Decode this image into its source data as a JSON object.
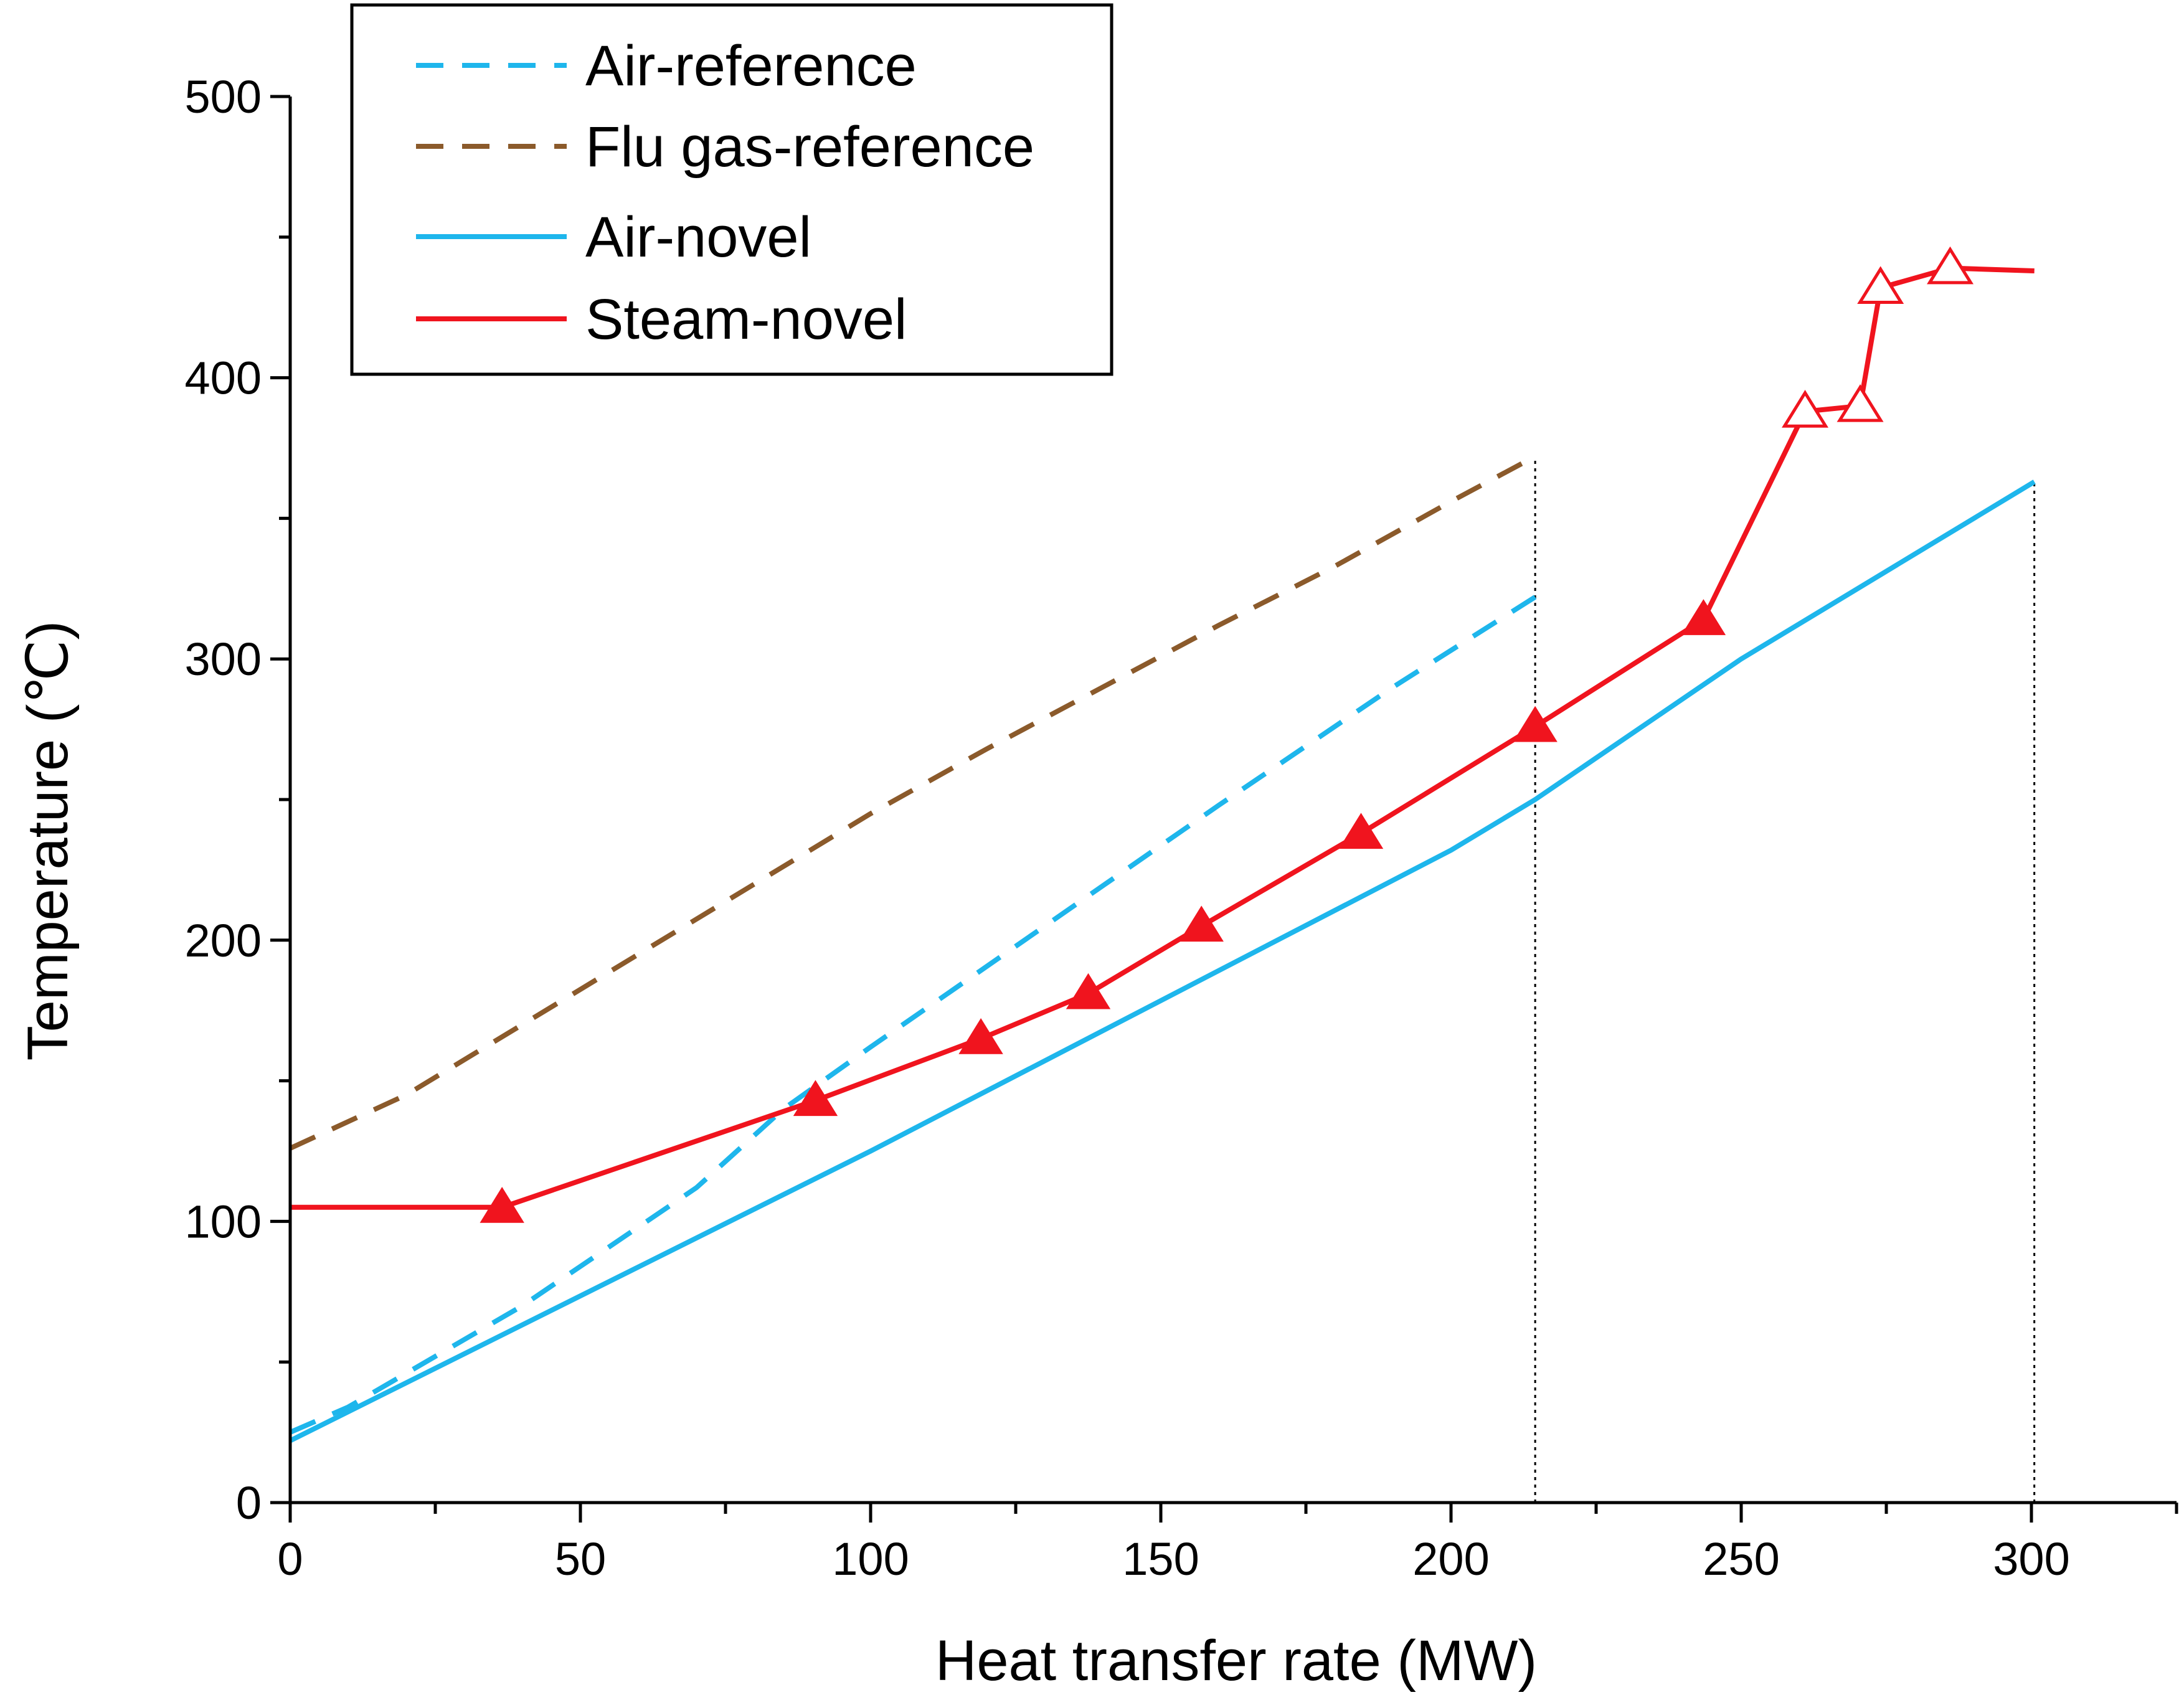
{
  "chart_data": {
    "type": "line",
    "title": "",
    "xlabel": "Heat transfer rate (MW)",
    "ylabel": "Temperature (℃)",
    "xlim": [
      0,
      325
    ],
    "ylim": [
      0,
      500
    ],
    "xticks": [
      0,
      50,
      100,
      150,
      200,
      250,
      300
    ],
    "yticks": [
      0,
      100,
      200,
      300,
      400,
      500
    ],
    "x_tick_labels": [
      "0",
      "50",
      "100",
      "150",
      "200",
      "250",
      "300"
    ],
    "y_tick_labels": [
      "0",
      "100",
      "200",
      "300",
      "400",
      "500"
    ],
    "grid": false,
    "legend_position": "top-left",
    "reference_lines_x": [
      214.5,
      300.5
    ],
    "series": [
      {
        "name": "Air-reference",
        "color": "#1EB6EC",
        "style": "dashed",
        "marker": "none",
        "x": [
          0,
          10,
          40,
          70,
          85,
          100,
          130,
          160,
          190,
          214.5
        ],
        "y": [
          25,
          34,
          70,
          112,
          140,
          162,
          205,
          248,
          290,
          322
        ]
      },
      {
        "name": "Flu gas-reference",
        "color": "#8B5A2B",
        "style": "dashed",
        "marker": "none",
        "x": [
          0,
          20,
          40,
          60,
          80,
          100,
          120,
          140,
          160,
          180,
          200,
          214.5
        ],
        "y": [
          126,
          145,
          170,
          195,
          220,
          245,
          268,
          290,
          312,
          333,
          356,
          372
        ]
      },
      {
        "name": "Air-novel",
        "color": "#1EB6EC",
        "style": "solid",
        "marker": "none",
        "x": [
          0,
          100,
          200,
          214.5,
          250,
          300.5
        ],
        "y": [
          22,
          125,
          232,
          250,
          300,
          363
        ]
      },
      {
        "name": "Steam-novel",
        "color": "#F0141E",
        "style": "solid",
        "marker": "none",
        "x": [
          0,
          36.5,
          90.5,
          119,
          137.5,
          157,
          184.5,
          214.5,
          243.5,
          261,
          270.5,
          274,
          286,
          300.5
        ],
        "y": [
          105,
          105,
          143,
          165,
          181,
          205,
          238,
          276,
          314,
          388,
          390,
          432,
          439,
          438
        ]
      }
    ],
    "markers": [
      {
        "series": "Steam-novel",
        "shape": "filled-triangle",
        "x": [
          36.5,
          90.5,
          119,
          137.5,
          157,
          184.5,
          214.5,
          243.5
        ],
        "y": [
          105,
          143,
          165,
          181,
          205,
          238,
          276,
          314
        ]
      },
      {
        "series": "Steam-novel",
        "shape": "open-triangle",
        "x": [
          261,
          270.5,
          274,
          286
        ],
        "y": [
          388,
          390,
          432,
          439
        ]
      }
    ]
  }
}
